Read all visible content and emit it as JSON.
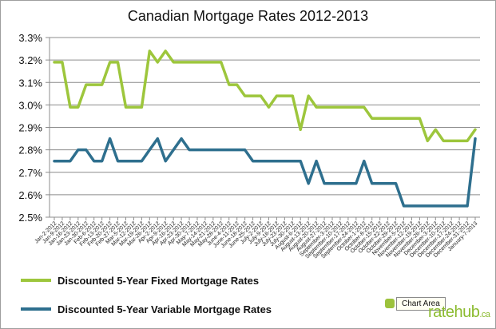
{
  "chart_data": {
    "type": "line",
    "title": "Canadian Mortgage Rates 2012-2013",
    "xlabel": "",
    "ylabel": "",
    "ylim": [
      2.5,
      3.3
    ],
    "yticks": [
      "2.5%",
      "2.6%",
      "2.7%",
      "2.8%",
      "2.9%",
      "3.0%",
      "3.1%",
      "3.2%",
      "3.3%"
    ],
    "grid": true,
    "legend_position": "bottom-left",
    "x": [
      "Jan-2-2012",
      "Jan-9-2012",
      "Jan-16-2012",
      "Jan-23-2012",
      "Jan-30-2012",
      "Feb-6-2012",
      "Feb-13-2012",
      "Feb-20-2012",
      "Feb-27-2012",
      "Mar-5-2012",
      "Mar-12-2012",
      "Mar-19-2012",
      "Mar-26-2012",
      "Apr-2-2012",
      "Apr-9-2012",
      "Apr-16-2012",
      "Apr-23-2012",
      "Apr-30-2012",
      "May-7-2012",
      "May-14-2012",
      "May-21-2012",
      "May-28-2012",
      "June-4-2012",
      "June-11-2012",
      "June-18-2012",
      "June-25-2012",
      "July-2-2012",
      "July-9-2012",
      "July-16-2012",
      "July-23-2012",
      "July-30-2012",
      "August-6-2012",
      "August-13-2012",
      "August-20-2012",
      "August-27-2012",
      "September-3-2012",
      "September-10-2012",
      "September-17-2012",
      "September-24-2012",
      "October-1-2012",
      "October-8-2012",
      "October-15-2012",
      "October-22-2012",
      "October-29-2012",
      "November-5-2012",
      "November-12-2012",
      "November-19-2012",
      "November-26-2012",
      "December-3-2012",
      "December-10-2012",
      "December-17-2012",
      "December-24-2012",
      "December-31-2012",
      "January-7-2013"
    ],
    "x_tick_labels": [
      "Jan-2-2012",
      "Jan-9-2012",
      "Jan-16-2012",
      "Jan-23-2012",
      "Jan-30-2012",
      "Feb-6-2012",
      "Feb-13-2012",
      "Feb-20-2012",
      "Feb-27-2012",
      "Mar-5-2012",
      "Mar-12-2012",
      "Mar-19-2012",
      "Mar-26-2012",
      "Apr-2-2012",
      "Apr-9-2012",
      "Apr-16-2012",
      "Apr-23-2012",
      "Apr-30-2012",
      "May-7-2012",
      "May-14-2012",
      "May-21-2012",
      "May-28-2012",
      "June-4-2012",
      "June-11-2012",
      "June-18-2012",
      "June-25-2012",
      "July-2-2012",
      "July-9-2012",
      "July-16-2012",
      "July-23-2012",
      "July-30-2012",
      "August-6-2012",
      "August-13-2012",
      "August-20-2012",
      "August-27-2012",
      "September-3-2012",
      "September-10-2012",
      "September-17-2012",
      "September-24-2012",
      "October-1-2012",
      "October-8-2012",
      "October-15-2012",
      "October-22-2012",
      "October-29-2012",
      "November-5-2012",
      "November-12-2012",
      "November-19-2012",
      "November-26-2012",
      "December-3-2012",
      "December-10-2012",
      "December-17-2012",
      "December-24-2012",
      "December-31-2012",
      "January-7-2013"
    ],
    "series": [
      {
        "name": "Discounted 5-Year Fixed Mortgage Rates",
        "color": "#9dc63c",
        "values": [
          3.19,
          3.19,
          2.99,
          2.99,
          3.09,
          3.09,
          3.09,
          3.19,
          3.19,
          2.99,
          2.99,
          2.99,
          3.24,
          3.19,
          3.24,
          3.19,
          3.19,
          3.19,
          3.19,
          3.19,
          3.19,
          3.19,
          3.09,
          3.09,
          3.04,
          3.04,
          3.04,
          2.99,
          3.04,
          3.04,
          3.04,
          2.89,
          3.04,
          2.99,
          2.99,
          2.99,
          2.99,
          2.99,
          2.99,
          2.99,
          2.94,
          2.94,
          2.94,
          2.94,
          2.94,
          2.94,
          2.94,
          2.84,
          2.89,
          2.84,
          2.84,
          2.84,
          2.84,
          2.89
        ]
      },
      {
        "name": "Discounted 5-Year Variable Mortgage Rates",
        "color": "#2e6f8e",
        "values": [
          2.75,
          2.75,
          2.75,
          2.8,
          2.8,
          2.75,
          2.75,
          2.85,
          2.75,
          2.75,
          2.75,
          2.75,
          2.8,
          2.85,
          2.75,
          2.8,
          2.85,
          2.8,
          2.8,
          2.8,
          2.8,
          2.8,
          2.8,
          2.8,
          2.8,
          2.75,
          2.75,
          2.75,
          2.75,
          2.75,
          2.75,
          2.75,
          2.65,
          2.75,
          2.65,
          2.65,
          2.65,
          2.65,
          2.65,
          2.75,
          2.65,
          2.65,
          2.65,
          2.65,
          2.55,
          2.55,
          2.55,
          2.55,
          2.55,
          2.55,
          2.55,
          2.55,
          2.55,
          2.85
        ]
      }
    ]
  },
  "overlay": {
    "badge_label": "Chart Area",
    "brand": "ratehub",
    "brand_suffix": ".ca"
  }
}
